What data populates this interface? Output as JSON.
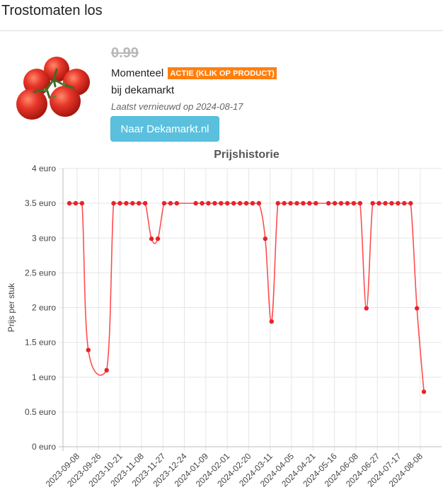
{
  "page": {
    "title": "Trostomaten los"
  },
  "product": {
    "old_price": "0.99",
    "status_label": "Momenteel",
    "promo_badge": "ACTIE (KLIK OP PRODUCT)",
    "store_text": "bij dekamarkt",
    "updated_text": "Laatst vernieuwd op 2024-08-17",
    "button_label": "Naar Dekamarkt.nl",
    "image_icon": "tomato-vine-icon"
  },
  "colors": {
    "series": "#ff4d4f",
    "series_point": "#e8232a",
    "badge": "#ff7f0e",
    "button": "#5bc0de"
  },
  "chart_data": {
    "type": "line",
    "title": "Prijshistorie",
    "xlabel": "",
    "ylabel": "Prijs per stuk",
    "ylim": [
      0,
      4
    ],
    "y_ticks": [
      0,
      0.5,
      1,
      1.5,
      2,
      2.5,
      3,
      3.5,
      4
    ],
    "y_tick_labels": [
      "0 euro",
      "0.5 euro",
      "1 euro",
      "1.5 euro",
      "2 euro",
      "2.5 euro",
      "3 euro",
      "3.5 euro",
      "4 euro"
    ],
    "x_tick_labels": [
      "2023-09-08",
      "2023-09-26",
      "2023-10-21",
      "2023-11-08",
      "2023-11-27",
      "2023-12-24",
      "2024-01-09",
      "2024-02-01",
      "2024-02-20",
      "2024-03-11",
      "2024-04-05",
      "2024-04-21",
      "2024-05-16",
      "2024-06-08",
      "2024-06-27",
      "2024-07-17",
      "2024-08-08"
    ],
    "grid": true,
    "series": [
      {
        "values": [
          3.5,
          3.5,
          3.5,
          1.39,
          1.1,
          3.5,
          3.5,
          3.5,
          3.5,
          3.5,
          3.5,
          2.99,
          2.99,
          3.5,
          3.5,
          3.5,
          3.5,
          3.5,
          3.5,
          3.5,
          3.5,
          3.5,
          3.5,
          3.5,
          3.5,
          3.5,
          3.5,
          2.99,
          1.8,
          3.5,
          3.5,
          3.5,
          3.5,
          3.5,
          3.5,
          3.5,
          3.5,
          3.5,
          3.5,
          3.5,
          3.5,
          3.5,
          1.99,
          3.5,
          3.5,
          3.5,
          3.5,
          3.5,
          3.5,
          3.5,
          1.99,
          0.79
        ],
        "x_index": [
          0,
          1,
          2,
          3,
          5.9,
          7,
          8,
          9,
          10,
          11,
          12,
          13,
          14,
          15,
          16,
          17,
          20,
          21,
          22,
          23,
          24,
          25,
          26,
          27,
          28,
          29,
          30,
          31,
          32,
          33,
          34,
          35,
          36,
          37,
          38,
          39,
          41,
          42,
          43,
          44,
          45,
          46,
          47,
          48,
          49,
          50,
          51,
          52,
          53,
          54,
          55,
          56.1
        ]
      }
    ]
  }
}
